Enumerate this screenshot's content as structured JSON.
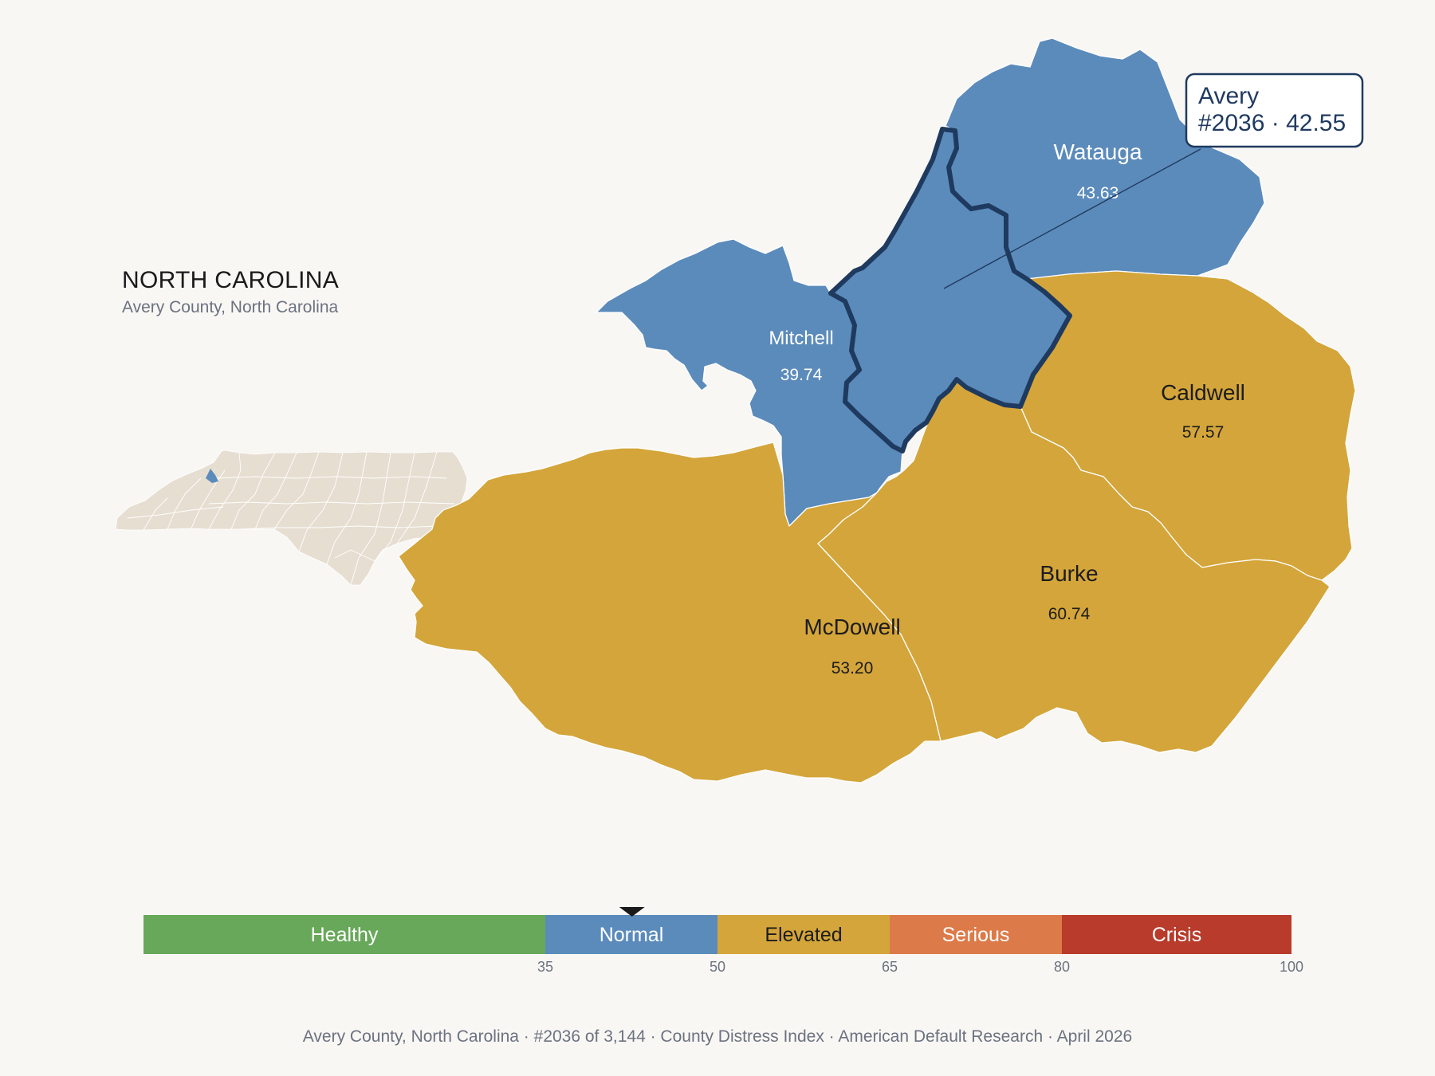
{
  "header": {
    "state": "NORTH CAROLINA",
    "subtitle": "Avery County, North Carolina"
  },
  "callout": {
    "county": "Avery",
    "detail": "#2036 · 42.55"
  },
  "counties": {
    "watauga": {
      "name": "Watauga",
      "value": "43.63",
      "category": "Normal"
    },
    "mitchell": {
      "name": "Mitchell",
      "value": "39.74",
      "category": "Normal"
    },
    "caldwell": {
      "name": "Caldwell",
      "value": "57.57",
      "category": "Elevated"
    },
    "burke": {
      "name": "Burke",
      "value": "60.74",
      "category": "Elevated"
    },
    "mcdowell": {
      "name": "McDowell",
      "value": "53.20",
      "category": "Elevated"
    },
    "avery": {
      "name": "Avery",
      "value": "42.55",
      "category": "Normal",
      "highlighted": true
    }
  },
  "scale": {
    "min": 0,
    "max": 100,
    "marker_value": 42.55,
    "bands": [
      {
        "label": "Healthy",
        "from": 0,
        "to": 35,
        "color": "#68a85a"
      },
      {
        "label": "Normal",
        "from": 35,
        "to": 50,
        "color": "#5b8bbb"
      },
      {
        "label": "Elevated",
        "from": 50,
        "to": 65,
        "color": "#d4a53a"
      },
      {
        "label": "Serious",
        "from": 65,
        "to": 80,
        "color": "#dd7a49"
      },
      {
        "label": "Crisis",
        "from": 80,
        "to": 100,
        "color": "#b83b2b"
      }
    ],
    "ticks": [
      "35",
      "50",
      "65",
      "80",
      "100"
    ]
  },
  "colors": {
    "normal": "#5b8bbb",
    "elevated": "#d4a53a",
    "highlight_outline": "#1f3a5f",
    "inset_fill": "#e6ded1",
    "background": "#f9f7f4"
  },
  "footer": {
    "county": "Avery County, North Carolina",
    "rank": "#2036 of 3,144",
    "index": "County Distress Index",
    "source": "American Default Research",
    "date": "April 2026",
    "separator": "·"
  }
}
